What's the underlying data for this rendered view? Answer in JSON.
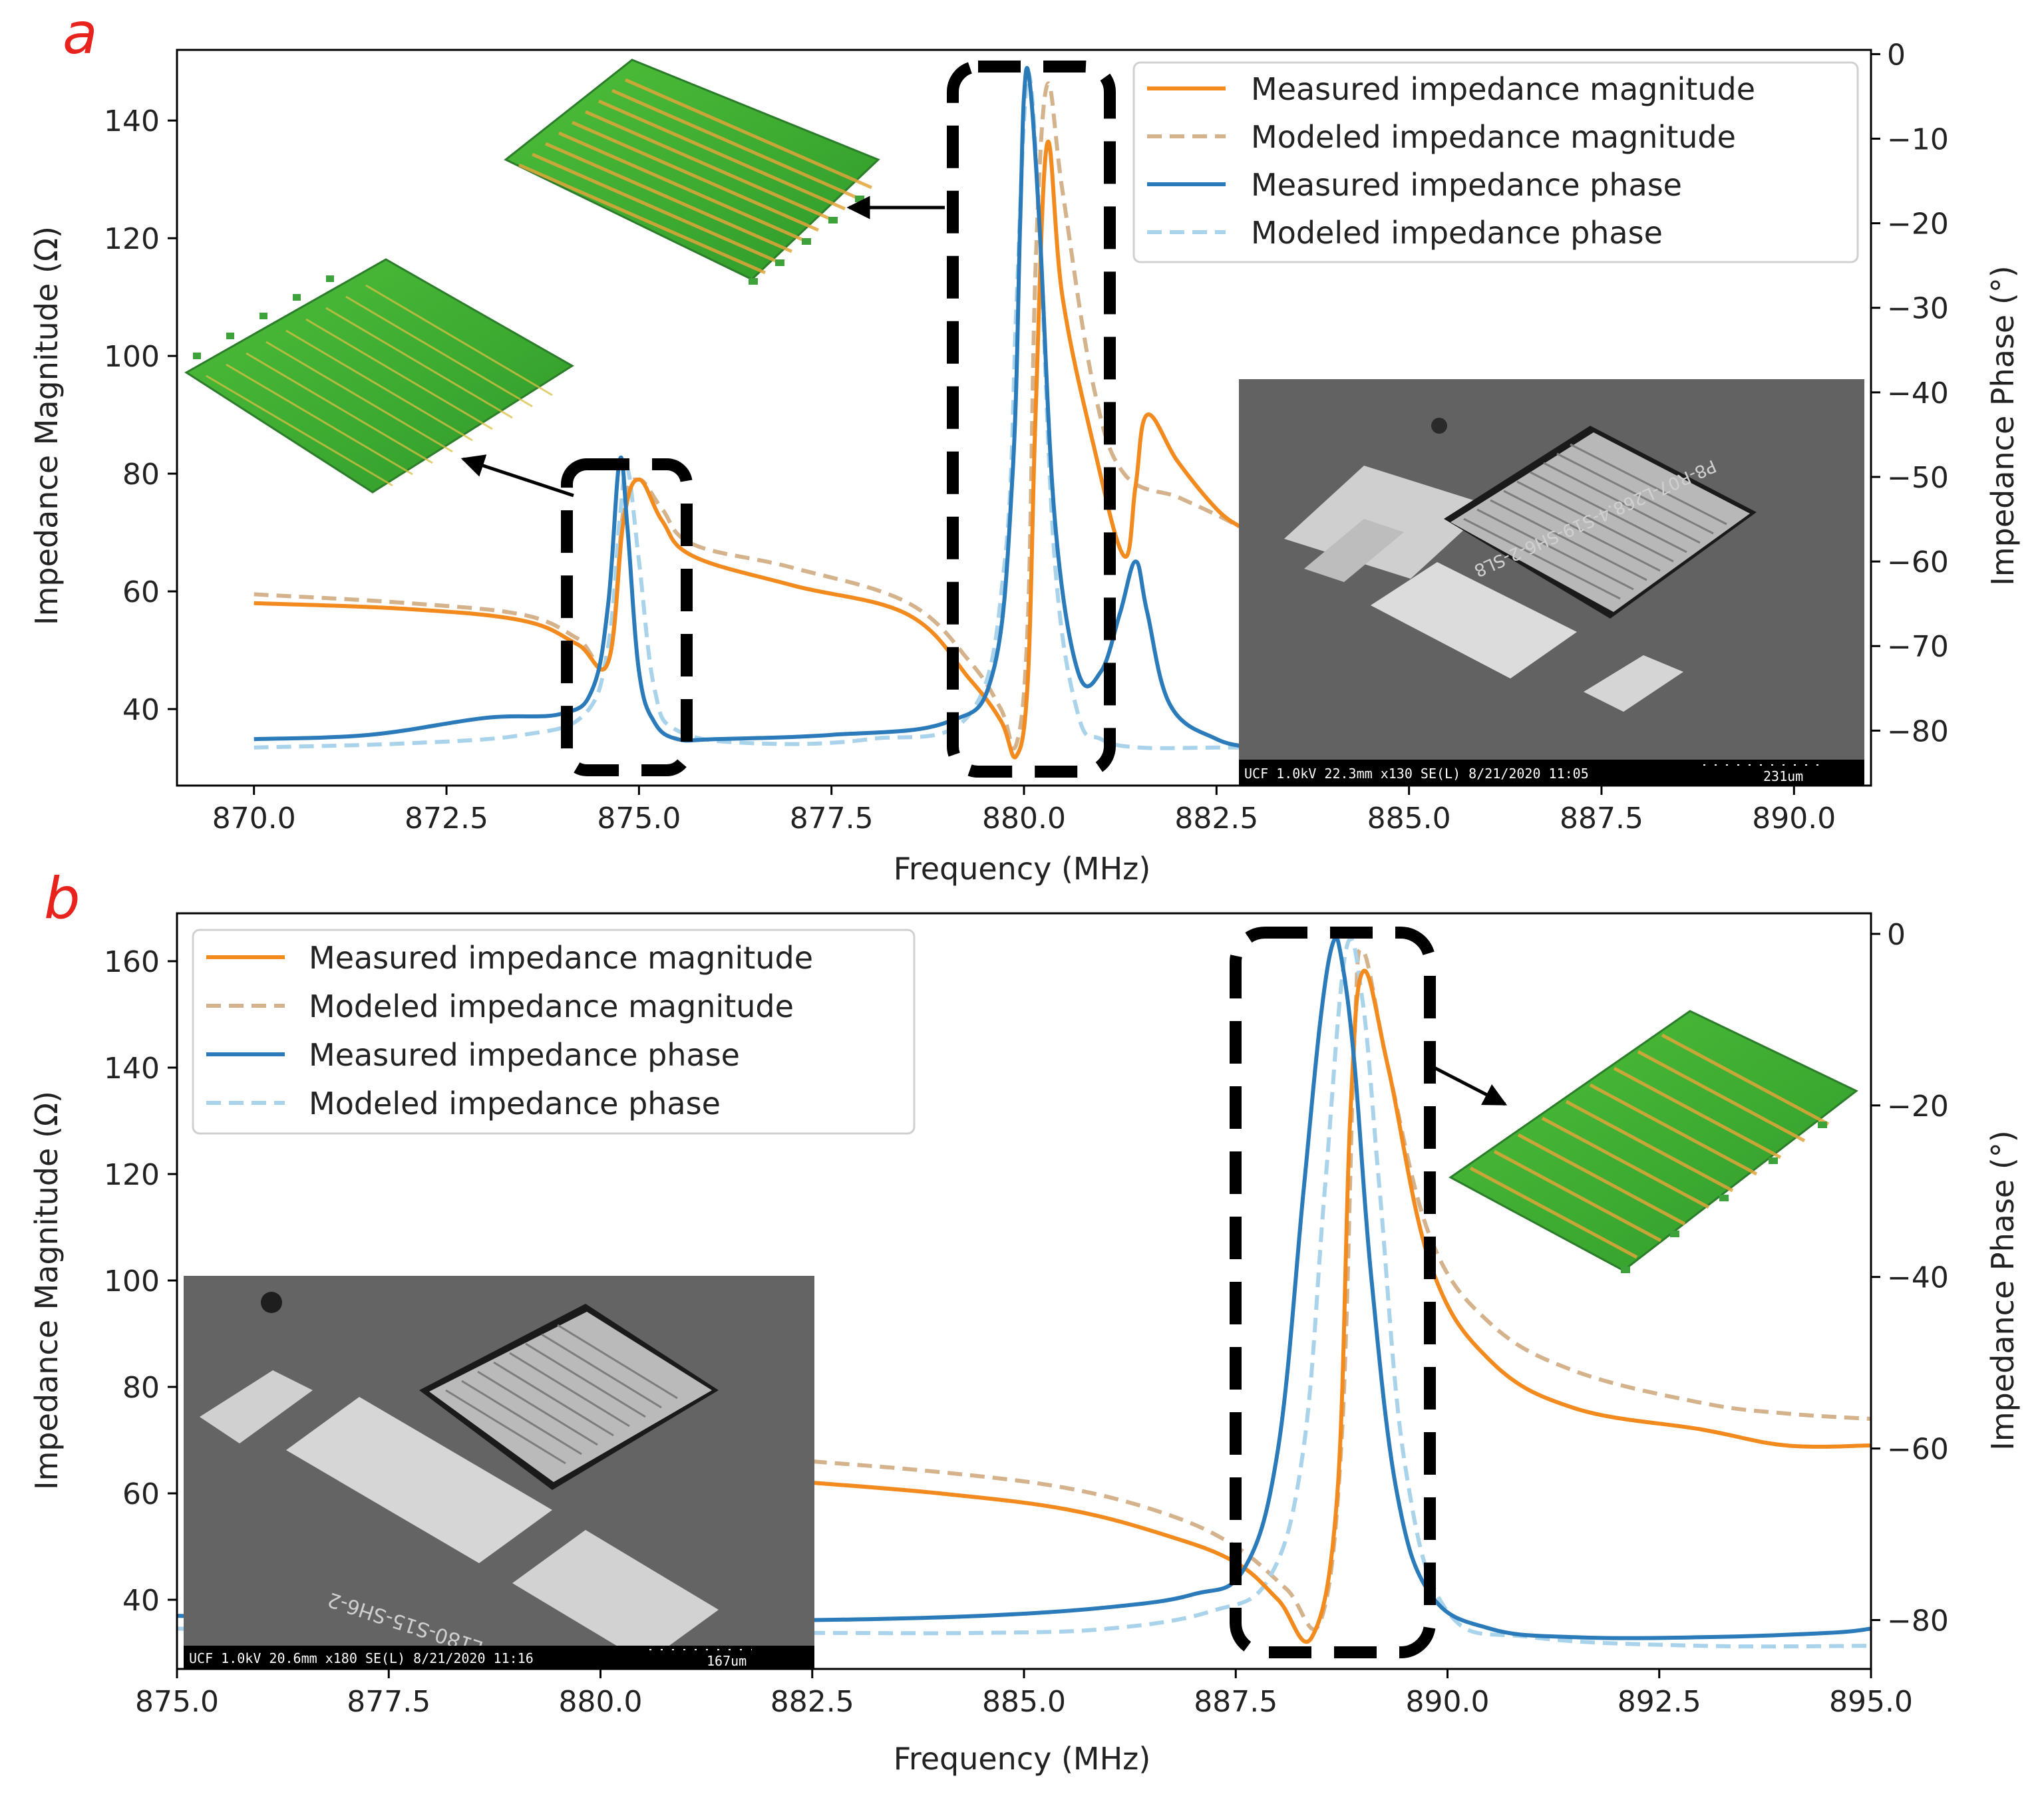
{
  "colors": {
    "measured_magnitude": "#f28a1e",
    "modeled_magnitude": "#d4b28c",
    "measured_phase": "#2b7bba",
    "modeled_phase": "#a9d3ea",
    "panel_letter": "#e8221c",
    "highlight_box": "#000000"
  },
  "chart_data": [
    {
      "panel": "a",
      "type": "line",
      "xlabel": "Frequency (MHz)",
      "ylabel": "Impedance Magnitude (Ω)",
      "y2label": "Impedance Phase (°)",
      "xlim": [
        869.0,
        891.0
      ],
      "ylim": [
        27,
        152
      ],
      "y2lim": [
        -86.5,
        0.5
      ],
      "xticks": [
        870.0,
        872.5,
        875.0,
        877.5,
        880.0,
        882.5,
        885.0,
        887.5,
        890.0
      ],
      "xtick_labels": [
        "870.0",
        "872.5",
        "875.0",
        "877.5",
        "880.0",
        "882.5",
        "885.0",
        "887.5",
        "890.0"
      ],
      "yticks": [
        40,
        60,
        80,
        100,
        120,
        140
      ],
      "y2ticks": [
        0,
        -10,
        -20,
        -30,
        -40,
        -50,
        -60,
        -70,
        -80
      ],
      "y2tick_labels": [
        "0",
        "−10",
        "−20",
        "−30",
        "−40",
        "−50",
        "−60",
        "−70",
        "−80"
      ],
      "legend_position": "top-right",
      "series": [
        {
          "name": "Measured impedance magnitude",
          "axis": "left",
          "style": "solid",
          "color_key": "measured_magnitude",
          "x": [
            870.0,
            872.0,
            873.5,
            874.2,
            874.6,
            874.8,
            875.0,
            875.3,
            875.7,
            877.0,
            878.5,
            879.3,
            879.7,
            879.9,
            880.05,
            880.15,
            880.3,
            880.5,
            880.9,
            881.3,
            881.45,
            881.6,
            882.0,
            882.5,
            882.8
          ],
          "y": [
            58,
            57,
            55,
            51,
            48,
            72,
            79,
            72,
            66,
            61,
            56,
            45,
            38,
            32,
            45,
            90,
            136,
            110,
            85,
            66,
            78,
            90,
            82,
            74,
            71
          ]
        },
        {
          "name": "Modeled impedance magnitude",
          "axis": "left",
          "style": "dashed",
          "color_key": "modeled_magnitude",
          "x": [
            870.0,
            872.0,
            873.5,
            874.2,
            874.6,
            874.8,
            875.0,
            875.3,
            875.7,
            877.0,
            878.5,
            879.3,
            879.7,
            879.9,
            880.05,
            880.15,
            880.3,
            880.5,
            880.9,
            881.3,
            882.0,
            882.5,
            882.8
          ],
          "y": [
            59.5,
            58,
            56,
            52,
            48,
            74,
            79,
            74,
            68,
            64,
            58,
            48,
            40,
            34,
            55,
            115,
            146,
            128,
            95,
            80,
            76,
            73,
            71
          ]
        },
        {
          "name": "Measured impedance phase",
          "axis": "right",
          "style": "solid",
          "color_key": "measured_phase",
          "x": [
            870.0,
            871.5,
            873.0,
            874.0,
            874.4,
            874.6,
            874.75,
            874.85,
            875.0,
            875.2,
            875.5,
            876.0,
            877.5,
            879.0,
            879.6,
            879.85,
            879.95,
            880.0,
            880.07,
            880.2,
            880.4,
            880.7,
            881.0,
            881.25,
            881.45,
            881.6,
            881.9,
            882.5,
            883.0
          ],
          "y": [
            -81,
            -80.5,
            -78.5,
            -78,
            -75,
            -65,
            -48,
            -56,
            -73,
            -79,
            -81,
            -81,
            -80.5,
            -79,
            -73,
            -50,
            -20,
            -5,
            -3,
            -20,
            -55,
            -73,
            -73,
            -66,
            -60,
            -66,
            -77,
            -81,
            -82
          ]
        },
        {
          "name": "Modeled impedance phase",
          "axis": "right",
          "style": "dashed",
          "color_key": "modeled_phase",
          "x": [
            870.0,
            872.0,
            873.5,
            874.3,
            874.6,
            874.75,
            874.85,
            875.0,
            875.2,
            875.5,
            876.5,
            878.0,
            879.3,
            879.75,
            879.9,
            880.0,
            880.08,
            880.2,
            880.4,
            880.7,
            881.0,
            881.5,
            882.5,
            883.0
          ],
          "y": [
            -82,
            -81.5,
            -80.5,
            -78,
            -70,
            -55,
            -49,
            -60,
            -75,
            -80,
            -81.5,
            -81,
            -78,
            -60,
            -30,
            -8,
            -3,
            -20,
            -60,
            -78,
            -81,
            -82,
            -82,
            -82
          ]
        }
      ]
    },
    {
      "panel": "b",
      "type": "line",
      "xlabel": "Frequency (MHz)",
      "ylabel": "Impedance Magnitude (Ω)",
      "y2label": "Impedance Phase (°)",
      "xlim": [
        875.0,
        895.0
      ],
      "ylim": [
        27,
        169
      ],
      "y2lim": [
        -85.7,
        2.4
      ],
      "xticks": [
        875.0,
        877.5,
        880.0,
        882.5,
        885.0,
        887.5,
        890.0,
        892.5,
        895.0
      ],
      "xtick_labels": [
        "875.0",
        "877.5",
        "880.0",
        "882.5",
        "885.0",
        "887.5",
        "890.0",
        "892.5",
        "895.0"
      ],
      "yticks": [
        40,
        60,
        80,
        100,
        120,
        140,
        160
      ],
      "y2ticks": [
        0,
        -20,
        -40,
        -60,
        -80
      ],
      "y2tick_labels": [
        "0",
        "−20",
        "−40",
        "−60",
        "−80"
      ],
      "legend_position": "top-left",
      "series": [
        {
          "name": "Measured impedance magnitude",
          "axis": "left",
          "style": "solid",
          "color_key": "measured_magnitude",
          "x": [
            882.5,
            884.0,
            885.5,
            886.7,
            887.5,
            888.0,
            888.4,
            888.7,
            888.85,
            889.0,
            889.3,
            889.8,
            890.5,
            891.5,
            893.0,
            894.0,
            895.0
          ],
          "y": [
            62,
            60,
            57,
            52,
            47,
            40,
            33,
            60,
            130,
            158,
            140,
            103,
            85,
            76,
            72,
            69,
            69
          ]
        },
        {
          "name": "Modeled impedance magnitude",
          "axis": "left",
          "style": "dashed",
          "color_key": "modeled_magnitude",
          "x": [
            882.5,
            884.0,
            885.5,
            886.7,
            887.5,
            888.1,
            888.5,
            888.75,
            888.9,
            889.0,
            889.3,
            889.8,
            890.5,
            891.5,
            893.0,
            894.0,
            895.0
          ],
          "y": [
            66,
            64,
            61,
            56,
            50,
            42,
            36,
            70,
            145,
            162,
            140,
            108,
            92,
            83,
            77,
            75,
            74
          ]
        },
        {
          "name": "Measured impedance phase",
          "axis": "right",
          "style": "solid",
          "color_key": "measured_phase",
          "x": [
            875.0,
            877.5,
            880.0,
            882.5,
            884.5,
            886.0,
            887.0,
            887.6,
            888.0,
            888.3,
            888.5,
            888.65,
            888.75,
            888.9,
            889.1,
            889.4,
            889.8,
            890.5,
            891.5,
            893.0,
            894.5,
            895.0
          ],
          "y": [
            -79.5,
            -80,
            -80,
            -80,
            -79.5,
            -78.5,
            -77,
            -74,
            -60,
            -30,
            -10,
            -1,
            -3,
            -15,
            -40,
            -65,
            -77,
            -81,
            -82,
            -82,
            -81.5,
            -81
          ]
        },
        {
          "name": "Modeled impedance phase",
          "axis": "right",
          "style": "dashed",
          "color_key": "modeled_phase",
          "x": [
            875.0,
            877.5,
            880.0,
            882.5,
            884.5,
            886.0,
            887.2,
            887.9,
            888.3,
            888.55,
            888.8,
            889.0,
            889.2,
            889.5,
            890.0,
            891.0,
            893.0,
            895.0
          ],
          "y": [
            -81,
            -81.5,
            -81.5,
            -81.5,
            -81.5,
            -81,
            -79,
            -75,
            -60,
            -30,
            -2,
            -8,
            -30,
            -62,
            -79,
            -82,
            -83,
            -83
          ]
        }
      ]
    }
  ],
  "panel_a": {
    "letter": "a",
    "legend": [
      "Measured impedance magnitude",
      "Modeled impedance magnitude",
      "Measured impedance phase",
      "Modeled impedance phase"
    ],
    "sem_caption": "UCF 1.0kV 22.3mm x130 SE(L) 8/21/2020 11:05",
    "sem_scale": "231um",
    "sem_label_text": "P8-R07-L268.4-S19-SH6-2-SL8"
  },
  "panel_b": {
    "letter": "b",
    "legend": [
      "Measured impedance magnitude",
      "Modeled impedance magnitude",
      "Measured impedance phase",
      "Modeled impedance phase"
    ],
    "sem_caption": "UCF 1.0kV 20.6mm x180 SE(L) 8/21/2020 11:16",
    "sem_scale": "167um",
    "sem_label_text": "R33-L180-S15-SH6-2"
  }
}
